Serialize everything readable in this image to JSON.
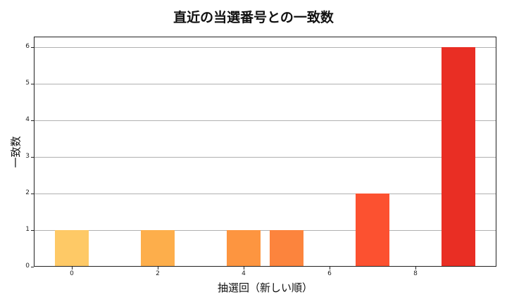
{
  "chart_data": {
    "type": "bar",
    "title": "直近の当選番号との一致数",
    "xlabel": "抽選回（新しい順）",
    "ylabel": "一致数",
    "x": [
      0,
      2,
      4,
      5,
      7,
      9
    ],
    "values": [
      1,
      1,
      1,
      1,
      2,
      6
    ],
    "colors": [
      "#fec966",
      "#fdae4b",
      "#fd9540",
      "#fc843d",
      "#fc5130",
      "#e92e24"
    ],
    "xticks": [
      "0",
      "2",
      "4",
      "6",
      "8"
    ],
    "yticks": [
      "0",
      "1",
      "2",
      "3",
      "4",
      "5",
      "6"
    ],
    "xlim": [
      -0.75,
      9.75
    ],
    "ylim": [
      0,
      6.3
    ],
    "grid": "y"
  }
}
